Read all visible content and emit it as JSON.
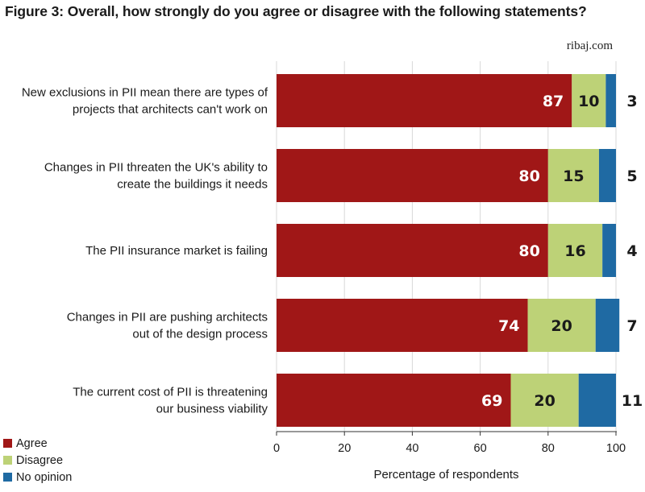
{
  "title": "Figure 3: Overall, how strongly do you agree or disagree with the following statements?",
  "source": "ribaj.com",
  "colors": {
    "agree": "#a01717",
    "disagree": "#bdd277",
    "no_opinion": "#1f6aa3",
    "grid": "#d8d8d8",
    "axis": "#333333"
  },
  "legend": [
    {
      "name": "Agree",
      "color": "#a01717"
    },
    {
      "name": "Disagree",
      "color": "#bdd277"
    },
    {
      "name": "No opinion",
      "color": "#1f6aa3"
    }
  ],
  "chart_data": {
    "type": "bar",
    "orientation": "horizontal",
    "stacked": true,
    "title": "Figure 3: Overall, how strongly do you agree or disagree with the following statements?",
    "xlabel": "Percentage of respondents",
    "ylabel": "",
    "xlim": [
      0,
      100
    ],
    "xticks": [
      0,
      20,
      40,
      60,
      80,
      100
    ],
    "grid": true,
    "legend_position": "bottom-left",
    "categories": [
      [
        "New exclusions in PII mean there are types of",
        "projects that architects can't work on"
      ],
      [
        "Changes in PII threaten the UK's ability to",
        "create the buildings it needs"
      ],
      [
        "The PII insurance market is failing"
      ],
      [
        "Changes in PII are pushing architects",
        "out of the design process"
      ],
      [
        "The current cost of PII is threatening",
        "our business viability"
      ]
    ],
    "series": [
      {
        "name": "Agree",
        "color": "#a01717",
        "values": [
          87,
          80,
          80,
          74,
          69
        ]
      },
      {
        "name": "Disagree",
        "color": "#bdd277",
        "values": [
          10,
          15,
          16,
          20,
          20
        ]
      },
      {
        "name": "No opinion",
        "color": "#1f6aa3",
        "values": [
          3,
          5,
          4,
          7,
          11
        ]
      }
    ]
  }
}
